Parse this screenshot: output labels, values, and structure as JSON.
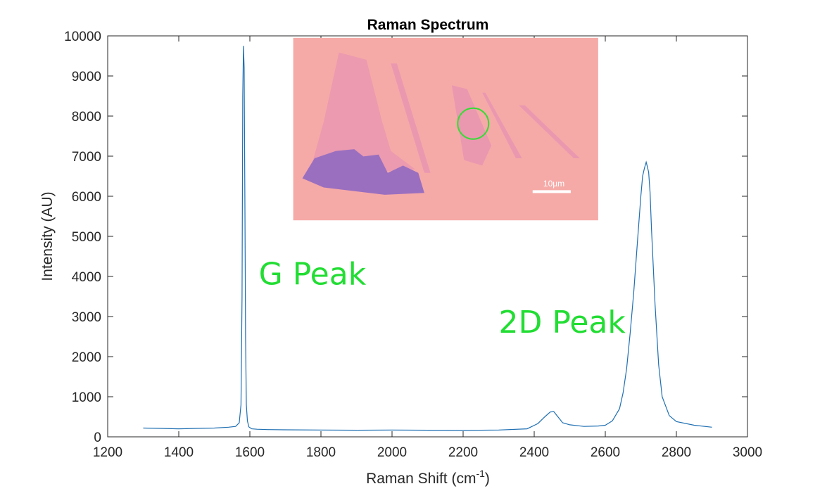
{
  "colors": {
    "line": "#1f6fb2",
    "axis": "#262626",
    "annotation": "#22dd33",
    "inset_background": "#f6aaa7",
    "inset_flake_light": "#ea98b0",
    "inset_flake_dark": "#9a6fc0",
    "inset_circle": "#33dd33"
  },
  "chart_data": {
    "type": "line",
    "title": "Raman Spectrum",
    "xlabel_main": "Raman Shift (cm",
    "xlabel_sup": "-1",
    "xlabel_tail": ")",
    "ylabel": "Intensity (AU)",
    "xlim": [
      1200,
      3000
    ],
    "ylim": [
      0,
      10000
    ],
    "xticks": [
      "1200",
      "1400",
      "1600",
      "1800",
      "2000",
      "2200",
      "2400",
      "2600",
      "2800",
      "3000"
    ],
    "yticks": [
      "0",
      "1000",
      "2000",
      "3000",
      "4000",
      "5000",
      "6000",
      "7000",
      "8000",
      "9000",
      "10000"
    ],
    "grid": false,
    "series": [
      {
        "x": [
          1300,
          1350,
          1400,
          1450,
          1500,
          1540,
          1560,
          1570,
          1575,
          1578,
          1580,
          1582,
          1584,
          1586,
          1588,
          1590,
          1593,
          1597,
          1605,
          1620,
          1650,
          1700,
          1800,
          1900,
          2000,
          2100,
          2200,
          2300,
          2380,
          2410,
          2430,
          2445,
          2455,
          2465,
          2480,
          2500,
          2540,
          2580,
          2600,
          2620,
          2640,
          2650,
          2660,
          2670,
          2680,
          2690,
          2700,
          2705,
          2710,
          2715,
          2718,
          2722,
          2726,
          2730,
          2740,
          2750,
          2760,
          2780,
          2800,
          2850,
          2900
        ],
        "y": [
          220,
          210,
          200,
          210,
          220,
          240,
          260,
          350,
          800,
          3500,
          8500,
          9750,
          9200,
          6000,
          2500,
          800,
          400,
          250,
          200,
          190,
          180,
          175,
          170,
          165,
          170,
          165,
          160,
          170,
          200,
          330,
          500,
          620,
          630,
          520,
          350,
          300,
          260,
          270,
          290,
          400,
          700,
          1100,
          1700,
          2600,
          3600,
          4800,
          6000,
          6500,
          6700,
          6850,
          6750,
          6600,
          6100,
          5200,
          3300,
          1800,
          1000,
          530,
          380,
          290,
          240
        ]
      }
    ],
    "annotations": [
      {
        "text": "G Peak",
        "x": 1625,
        "y": 3800
      },
      {
        "text": "2D Peak",
        "x": 2300,
        "y": 2600
      }
    ],
    "inset": {
      "xlim": [
        1722,
        2580
      ],
      "ylim": [
        5400,
        9950
      ],
      "scale_bar_label": "10µm"
    }
  }
}
